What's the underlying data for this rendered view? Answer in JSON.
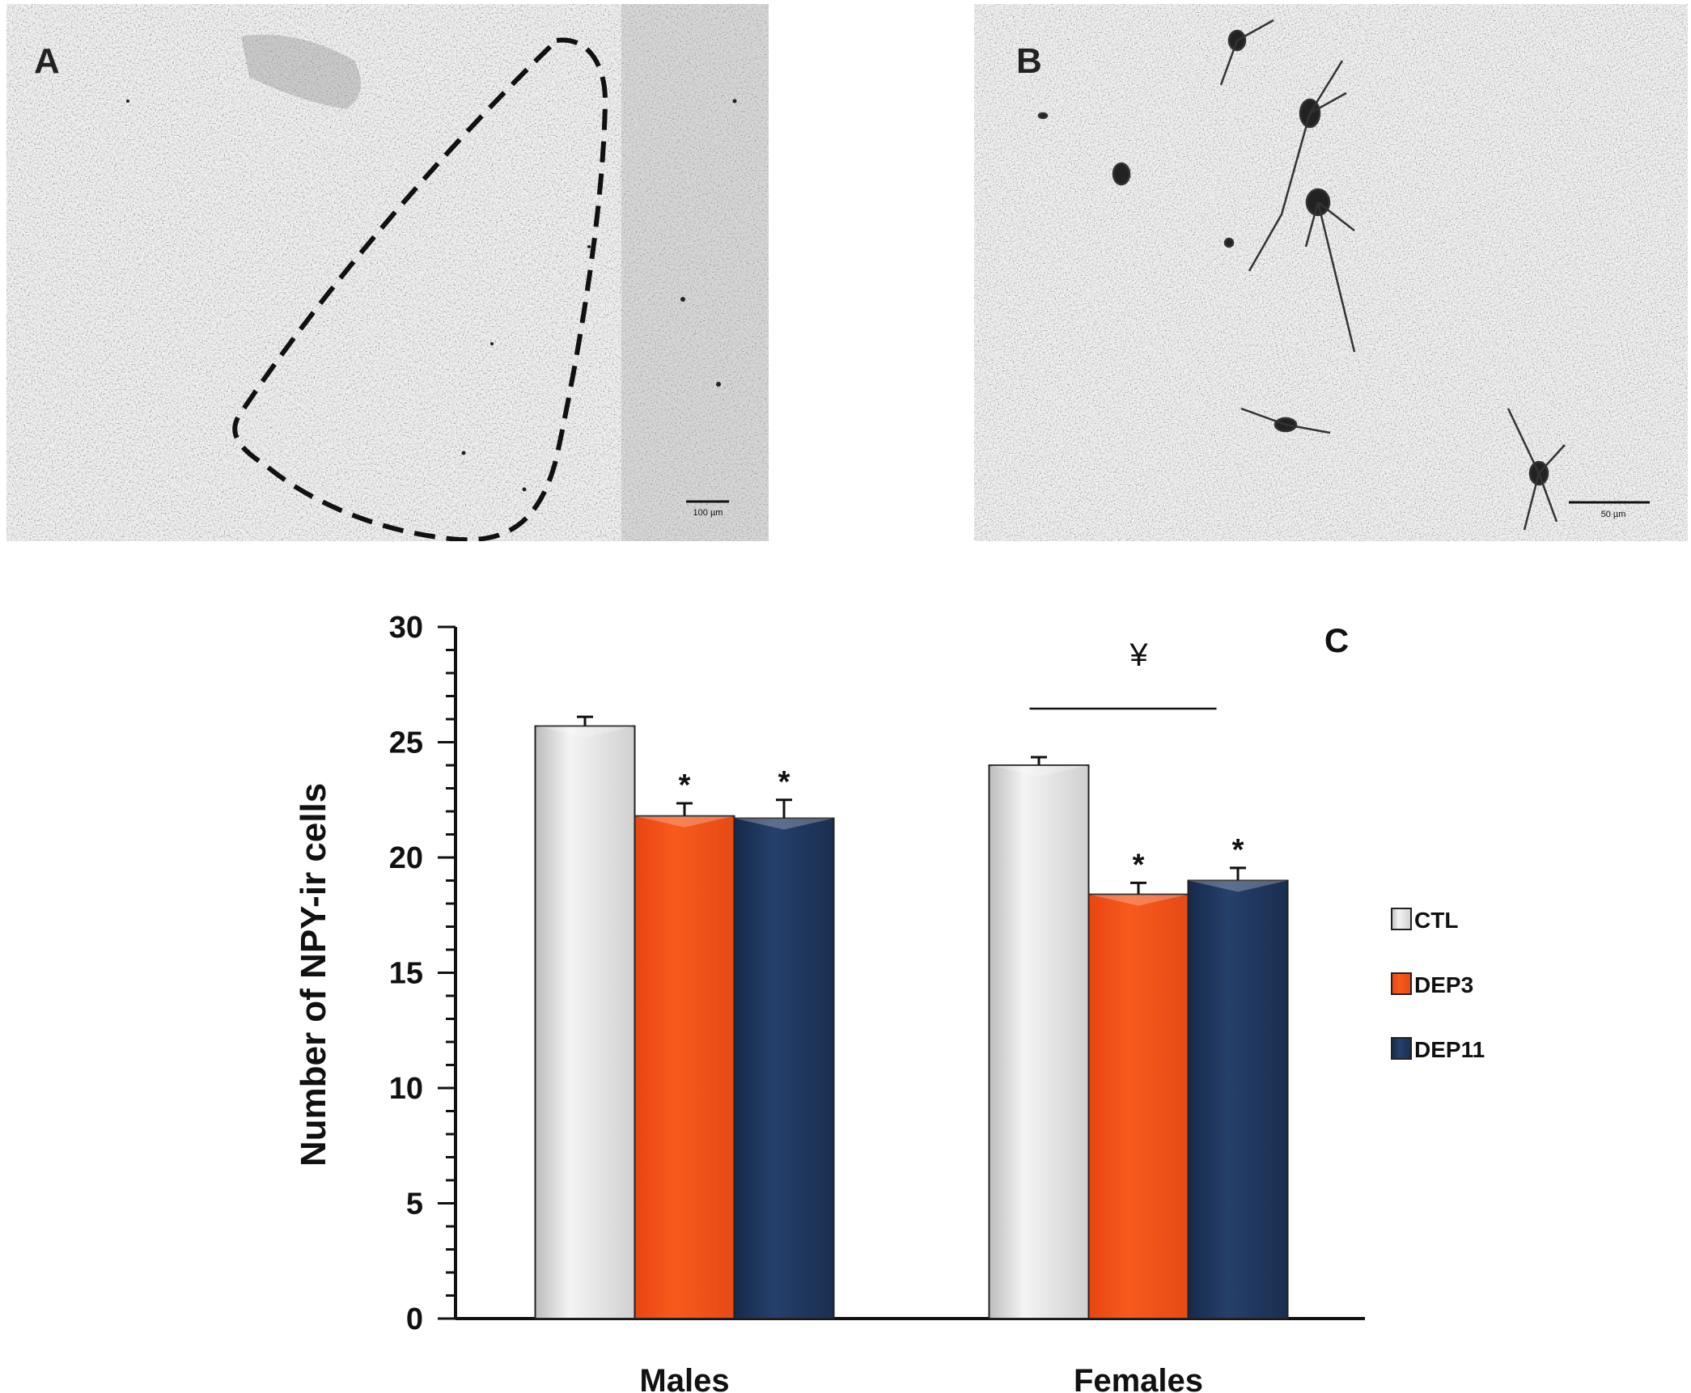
{
  "panels": {
    "a": {
      "label": "A",
      "scale_bar": "100 µm"
    },
    "b": {
      "label": "B",
      "scale_bar": "50 µm"
    }
  },
  "chart_data": {
    "type": "bar",
    "panel_label": "C",
    "ylabel": "Number of NPY-ir cells",
    "xlabel": "",
    "ylim": [
      0,
      30
    ],
    "yticks": [
      0,
      5,
      10,
      15,
      20,
      25,
      30
    ],
    "categories": [
      "Males",
      "Females"
    ],
    "series": [
      {
        "name": "CTL",
        "color": "#e4e4e4",
        "values": [
          25.7,
          24.0
        ],
        "errors": [
          0.4,
          0.35
        ],
        "sig": [
          "",
          ""
        ]
      },
      {
        "name": "DEP3",
        "color": "#f55016",
        "values": [
          21.8,
          18.4
        ],
        "errors": [
          0.55,
          0.5
        ],
        "sig": [
          "*",
          "*"
        ]
      },
      {
        "name": "DEP11",
        "color": "#1f3559",
        "values": [
          21.7,
          19.0
        ],
        "errors": [
          0.8,
          0.55
        ],
        "sig": [
          "*",
          "*"
        ]
      }
    ],
    "grid": false,
    "legend": "right",
    "annotations": [
      {
        "text": "¥",
        "category": "Females",
        "type": "bracket"
      }
    ]
  }
}
